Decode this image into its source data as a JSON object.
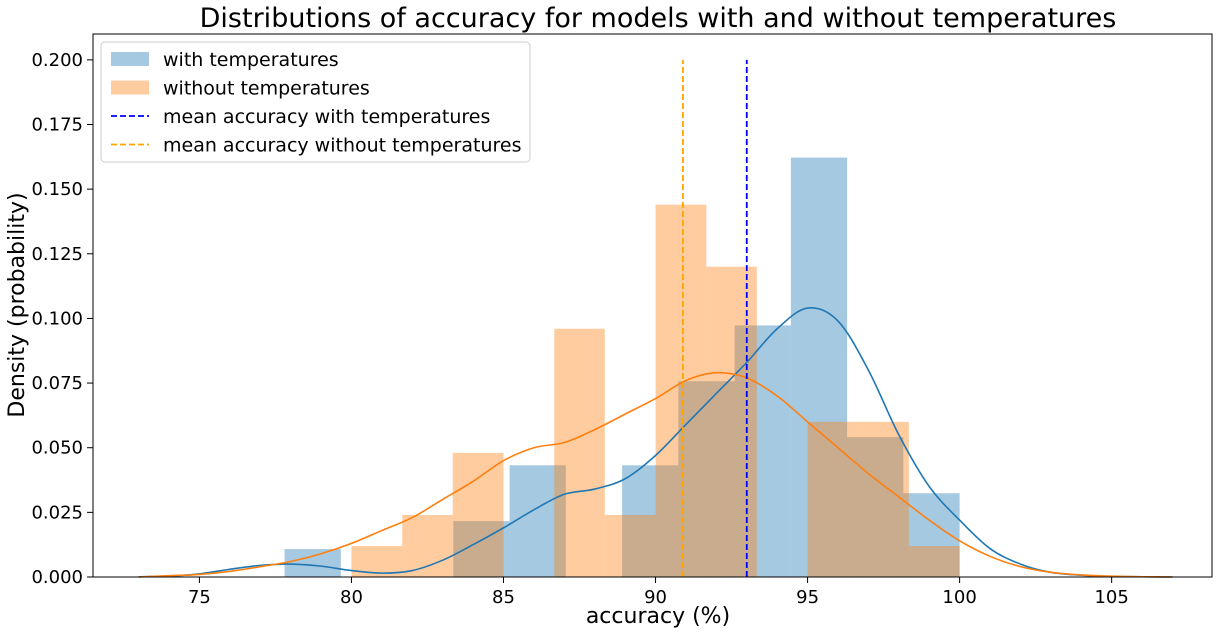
{
  "chart_data": {
    "type": "histogram",
    "title": "Distributions of accuracy for models with and without temperatures",
    "xlabel": "accuracy (%)",
    "ylabel": "Density (probability)",
    "xlim": [
      71.5,
      108.3
    ],
    "ylim": [
      0,
      0.21
    ],
    "xticks": [
      75,
      80,
      85,
      90,
      95,
      100,
      105
    ],
    "xtick_labels": [
      "75",
      "80",
      "85",
      "90",
      "95",
      "100",
      "105"
    ],
    "yticks": [
      0.0,
      0.025,
      0.05,
      0.075,
      0.1,
      0.125,
      0.15,
      0.175,
      0.2
    ],
    "ytick_labels": [
      "0.000",
      "0.025",
      "0.050",
      "0.075",
      "0.100",
      "0.125",
      "0.150",
      "0.175",
      "0.200"
    ],
    "grid": false,
    "legend_position": "top-left",
    "legend": [
      {
        "label": "with temperatures",
        "kind": "patch",
        "color": "#1f77b4"
      },
      {
        "label": "without temperatures",
        "kind": "patch",
        "color": "#ff7f0e"
      },
      {
        "label": "mean accuracy with temperatures",
        "kind": "dashed",
        "color": "#0000ff"
      },
      {
        "label": "mean accuracy without temperatures",
        "kind": "dashed",
        "color": "#ffa500"
      }
    ],
    "series": [
      {
        "name": "with temperatures",
        "color": "#1f77b4",
        "opacity": 0.4,
        "bin_edges": [
          77.8,
          79.65,
          81.5,
          83.35,
          85.2,
          87.05,
          88.9,
          90.75,
          92.6,
          94.45,
          96.3,
          98.15,
          100.0
        ],
        "densities": [
          0.0108,
          0,
          0,
          0.0216,
          0.0432,
          0,
          0.0432,
          0.0757,
          0.0973,
          0.1622,
          0.0541,
          0.0324
        ],
        "kde": {
          "x": [
            73,
            74,
            75,
            76,
            77,
            78,
            79,
            80,
            81,
            82,
            83,
            84,
            85,
            86,
            87,
            88,
            89,
            90,
            91,
            92,
            93,
            94,
            95,
            96,
            97,
            98,
            99,
            100,
            101,
            102,
            103,
            104,
            105,
            106,
            107
          ],
          "y": [
            0.0001,
            0.0004,
            0.0012,
            0.003,
            0.0045,
            0.005,
            0.0042,
            0.0025,
            0.0015,
            0.0025,
            0.0065,
            0.0125,
            0.019,
            0.026,
            0.032,
            0.034,
            0.038,
            0.047,
            0.059,
            0.071,
            0.083,
            0.096,
            0.104,
            0.099,
            0.08,
            0.055,
            0.035,
            0.022,
            0.011,
            0.005,
            0.0018,
            0.0007,
            0.0002,
            0.0001,
            0.0
          ]
        },
        "mean": 93.0
      },
      {
        "name": "without temperatures",
        "color": "#ff7f0e",
        "opacity": 0.4,
        "bin_edges": [
          80.0,
          81.67,
          83.33,
          85.0,
          86.67,
          88.33,
          90.0,
          91.67,
          93.33,
          95.0,
          96.67,
          98.33,
          100.0
        ],
        "densities": [
          0.012,
          0.024,
          0.048,
          0.0,
          0.096,
          0.024,
          0.144,
          0.12,
          0.0,
          0.06,
          0.06,
          0.012
        ],
        "kde": {
          "x": [
            73,
            74,
            75,
            76,
            77,
            78,
            79,
            80,
            81,
            82,
            83,
            84,
            85,
            86,
            87,
            88,
            89,
            90,
            91,
            92,
            93,
            94,
            95,
            96,
            97,
            98,
            99,
            100,
            101,
            102,
            103,
            104,
            105,
            106,
            107
          ],
          "y": [
            0.0,
            0.0005,
            0.001,
            0.0022,
            0.004,
            0.006,
            0.009,
            0.013,
            0.018,
            0.023,
            0.03,
            0.037,
            0.045,
            0.05,
            0.052,
            0.057,
            0.063,
            0.069,
            0.076,
            0.079,
            0.077,
            0.07,
            0.06,
            0.05,
            0.04,
            0.031,
            0.022,
            0.014,
            0.008,
            0.004,
            0.0018,
            0.0008,
            0.0003,
            0.0001,
            0.0
          ]
        },
        "mean": 90.9
      }
    ],
    "mean_lines": [
      {
        "x": 93.0,
        "y_top": 0.2,
        "color": "#0000ff",
        "dash": true
      },
      {
        "x": 90.9,
        "y_top": 0.2,
        "color": "#ffa500",
        "dash": true
      }
    ]
  }
}
